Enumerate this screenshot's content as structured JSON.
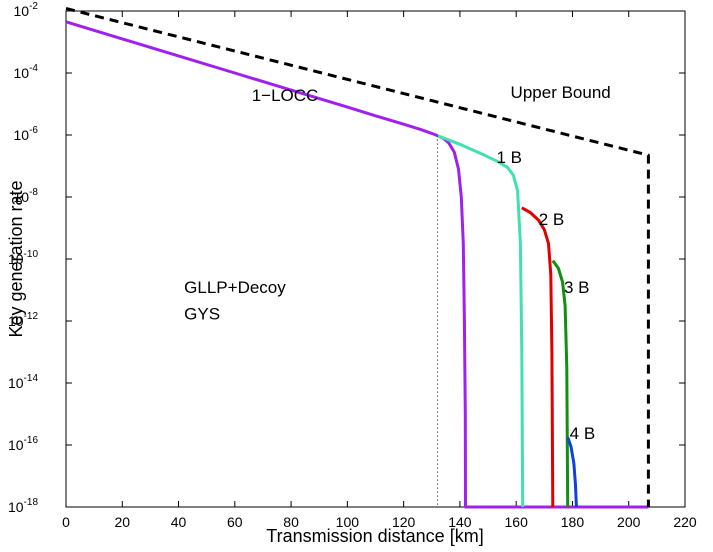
{
  "chart_data": {
    "type": "line",
    "title": "",
    "xlabel": "Transmission distance [km]",
    "ylabel": "Key generation rate",
    "xlim": [
      0,
      220
    ],
    "ylim_exponent": [
      -18,
      -2
    ],
    "yscale": "log",
    "x_ticks": [
      "0",
      "20",
      "40",
      "60",
      "80",
      "100",
      "120",
      "140",
      "160",
      "180",
      "200",
      "220"
    ],
    "y_tick_exponents": [
      "-2",
      "-4",
      "-6",
      "-8",
      "-10",
      "-12",
      "-14",
      "-16",
      "-18"
    ],
    "y_tick_base": "10",
    "grid": false,
    "series": [
      {
        "name": "Upper Bound",
        "color": "#000000",
        "style": "dashed",
        "points": [
          [
            0,
            -1.92
          ],
          [
            207,
            -6.65
          ],
          [
            207,
            -18
          ]
        ]
      },
      {
        "name": "1-LOCC",
        "color": "#a020f0",
        "style": "solid",
        "points": [
          [
            0,
            -2.35
          ],
          [
            20,
            -2.9
          ],
          [
            40,
            -3.45
          ],
          [
            60,
            -4.0
          ],
          [
            80,
            -4.55
          ],
          [
            100,
            -5.1
          ],
          [
            110,
            -5.38
          ],
          [
            120,
            -5.65
          ],
          [
            126,
            -5.82
          ],
          [
            130,
            -5.95
          ],
          [
            132,
            -6.02
          ],
          [
            134,
            -6.1
          ],
          [
            136,
            -6.25
          ],
          [
            138,
            -6.55
          ],
          [
            139.5,
            -7.1
          ],
          [
            140.5,
            -8.0
          ],
          [
            141.2,
            -9.5
          ],
          [
            141.6,
            -12.0
          ],
          [
            141.9,
            -15.0
          ],
          [
            142,
            -18
          ],
          [
            207,
            -18
          ]
        ]
      },
      {
        "name": "1 B",
        "color": "#40e0b0",
        "style": "solid",
        "points": [
          [
            132,
            -6.02
          ],
          [
            140,
            -6.3
          ],
          [
            148,
            -6.62
          ],
          [
            154,
            -6.88
          ],
          [
            157,
            -7.05
          ],
          [
            159,
            -7.3
          ],
          [
            160.5,
            -7.8
          ],
          [
            161.5,
            -9.5
          ],
          [
            162,
            -13.0
          ],
          [
            162.3,
            -18
          ]
        ]
      },
      {
        "name": "2 B",
        "color": "#e00000",
        "style": "solid",
        "points": [
          [
            162,
            -8.35
          ],
          [
            165,
            -8.5
          ],
          [
            168,
            -8.75
          ],
          [
            170,
            -9.05
          ],
          [
            171.5,
            -9.5
          ],
          [
            172.3,
            -10.5
          ],
          [
            172.7,
            -13.0
          ],
          [
            173,
            -18
          ]
        ]
      },
      {
        "name": "3 B",
        "color": "#109010",
        "style": "solid",
        "points": [
          [
            173,
            -10.05
          ],
          [
            175,
            -10.3
          ],
          [
            176.5,
            -10.75
          ],
          [
            177.4,
            -11.5
          ],
          [
            178,
            -13.5
          ],
          [
            178.3,
            -18
          ]
        ]
      },
      {
        "name": "4 B",
        "color": "#1040e0",
        "style": "solid",
        "points": [
          [
            178.3,
            -15.75
          ],
          [
            179.5,
            -16.05
          ],
          [
            180.5,
            -16.6
          ],
          [
            181.1,
            -17.3
          ],
          [
            181.4,
            -18
          ]
        ]
      },
      {
        "name": "cutoff",
        "color": "#000000",
        "style": "dotted",
        "points": [
          [
            132,
            -6.02
          ],
          [
            132,
            -18
          ]
        ]
      }
    ],
    "annotations": [
      {
        "text": "1−LOCC",
        "x": 66,
        "y_exp": -4.9
      },
      {
        "text": "Upper Bound",
        "x": 158,
        "y_exp": -4.8
      },
      {
        "text": "1 B",
        "x": 153,
        "y_exp": -6.9
      },
      {
        "text": "2 B",
        "x": 168,
        "y_exp": -8.9
      },
      {
        "text": "3 B",
        "x": 177,
        "y_exp": -11.1
      },
      {
        "text": "4 B",
        "x": 179,
        "y_exp": -15.8
      },
      {
        "text": "GLLP+Decoy",
        "x": 42,
        "y_exp": -11.1
      },
      {
        "text": "GYS",
        "x": 42,
        "y_exp": -11.95
      }
    ]
  }
}
